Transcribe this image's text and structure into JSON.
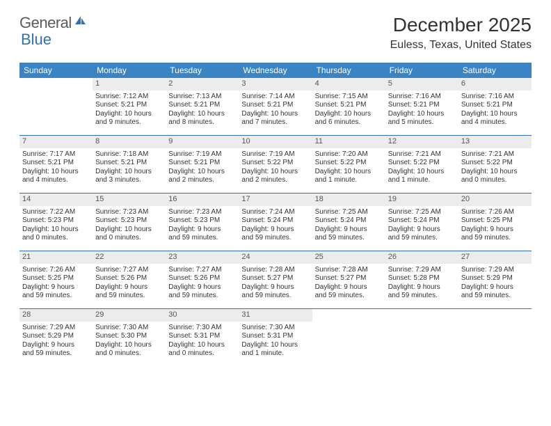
{
  "logo": {
    "word1": "General",
    "word2": "Blue"
  },
  "title": "December 2025",
  "location": "Euless, Texas, United States",
  "colors": {
    "header_bg": "#3b84c4",
    "header_text": "#ffffff",
    "daynum_bg": "#ececec",
    "daynum_text": "#555555",
    "body_text": "#333333",
    "divider": "#2f71b8",
    "logo_dark": "#5a5a5a",
    "logo_blue": "#2f71b8"
  },
  "typography": {
    "title_fontsize": 28,
    "location_fontsize": 16,
    "weekday_fontsize": 12,
    "daynum_fontsize": 11,
    "body_fontsize": 10
  },
  "weekdays": [
    "Sunday",
    "Monday",
    "Tuesday",
    "Wednesday",
    "Thursday",
    "Friday",
    "Saturday"
  ],
  "weeks": [
    [
      {
        "blank": true
      },
      {
        "n": "1",
        "sr": "Sunrise: 7:12 AM",
        "ss": "Sunset: 5:21 PM",
        "d1": "Daylight: 10 hours",
        "d2": "and 9 minutes."
      },
      {
        "n": "2",
        "sr": "Sunrise: 7:13 AM",
        "ss": "Sunset: 5:21 PM",
        "d1": "Daylight: 10 hours",
        "d2": "and 8 minutes."
      },
      {
        "n": "3",
        "sr": "Sunrise: 7:14 AM",
        "ss": "Sunset: 5:21 PM",
        "d1": "Daylight: 10 hours",
        "d2": "and 7 minutes."
      },
      {
        "n": "4",
        "sr": "Sunrise: 7:15 AM",
        "ss": "Sunset: 5:21 PM",
        "d1": "Daylight: 10 hours",
        "d2": "and 6 minutes."
      },
      {
        "n": "5",
        "sr": "Sunrise: 7:16 AM",
        "ss": "Sunset: 5:21 PM",
        "d1": "Daylight: 10 hours",
        "d2": "and 5 minutes."
      },
      {
        "n": "6",
        "sr": "Sunrise: 7:16 AM",
        "ss": "Sunset: 5:21 PM",
        "d1": "Daylight: 10 hours",
        "d2": "and 4 minutes."
      }
    ],
    [
      {
        "n": "7",
        "sr": "Sunrise: 7:17 AM",
        "ss": "Sunset: 5:21 PM",
        "d1": "Daylight: 10 hours",
        "d2": "and 4 minutes."
      },
      {
        "n": "8",
        "sr": "Sunrise: 7:18 AM",
        "ss": "Sunset: 5:21 PM",
        "d1": "Daylight: 10 hours",
        "d2": "and 3 minutes."
      },
      {
        "n": "9",
        "sr": "Sunrise: 7:19 AM",
        "ss": "Sunset: 5:21 PM",
        "d1": "Daylight: 10 hours",
        "d2": "and 2 minutes."
      },
      {
        "n": "10",
        "sr": "Sunrise: 7:19 AM",
        "ss": "Sunset: 5:22 PM",
        "d1": "Daylight: 10 hours",
        "d2": "and 2 minutes."
      },
      {
        "n": "11",
        "sr": "Sunrise: 7:20 AM",
        "ss": "Sunset: 5:22 PM",
        "d1": "Daylight: 10 hours",
        "d2": "and 1 minute."
      },
      {
        "n": "12",
        "sr": "Sunrise: 7:21 AM",
        "ss": "Sunset: 5:22 PM",
        "d1": "Daylight: 10 hours",
        "d2": "and 1 minute."
      },
      {
        "n": "13",
        "sr": "Sunrise: 7:21 AM",
        "ss": "Sunset: 5:22 PM",
        "d1": "Daylight: 10 hours",
        "d2": "and 0 minutes."
      }
    ],
    [
      {
        "n": "14",
        "sr": "Sunrise: 7:22 AM",
        "ss": "Sunset: 5:23 PM",
        "d1": "Daylight: 10 hours",
        "d2": "and 0 minutes."
      },
      {
        "n": "15",
        "sr": "Sunrise: 7:23 AM",
        "ss": "Sunset: 5:23 PM",
        "d1": "Daylight: 10 hours",
        "d2": "and 0 minutes."
      },
      {
        "n": "16",
        "sr": "Sunrise: 7:23 AM",
        "ss": "Sunset: 5:23 PM",
        "d1": "Daylight: 9 hours",
        "d2": "and 59 minutes."
      },
      {
        "n": "17",
        "sr": "Sunrise: 7:24 AM",
        "ss": "Sunset: 5:24 PM",
        "d1": "Daylight: 9 hours",
        "d2": "and 59 minutes."
      },
      {
        "n": "18",
        "sr": "Sunrise: 7:25 AM",
        "ss": "Sunset: 5:24 PM",
        "d1": "Daylight: 9 hours",
        "d2": "and 59 minutes."
      },
      {
        "n": "19",
        "sr": "Sunrise: 7:25 AM",
        "ss": "Sunset: 5:24 PM",
        "d1": "Daylight: 9 hours",
        "d2": "and 59 minutes."
      },
      {
        "n": "20",
        "sr": "Sunrise: 7:26 AM",
        "ss": "Sunset: 5:25 PM",
        "d1": "Daylight: 9 hours",
        "d2": "and 59 minutes."
      }
    ],
    [
      {
        "n": "21",
        "sr": "Sunrise: 7:26 AM",
        "ss": "Sunset: 5:25 PM",
        "d1": "Daylight: 9 hours",
        "d2": "and 59 minutes."
      },
      {
        "n": "22",
        "sr": "Sunrise: 7:27 AM",
        "ss": "Sunset: 5:26 PM",
        "d1": "Daylight: 9 hours",
        "d2": "and 59 minutes."
      },
      {
        "n": "23",
        "sr": "Sunrise: 7:27 AM",
        "ss": "Sunset: 5:26 PM",
        "d1": "Daylight: 9 hours",
        "d2": "and 59 minutes."
      },
      {
        "n": "24",
        "sr": "Sunrise: 7:28 AM",
        "ss": "Sunset: 5:27 PM",
        "d1": "Daylight: 9 hours",
        "d2": "and 59 minutes."
      },
      {
        "n": "25",
        "sr": "Sunrise: 7:28 AM",
        "ss": "Sunset: 5:27 PM",
        "d1": "Daylight: 9 hours",
        "d2": "and 59 minutes."
      },
      {
        "n": "26",
        "sr": "Sunrise: 7:29 AM",
        "ss": "Sunset: 5:28 PM",
        "d1": "Daylight: 9 hours",
        "d2": "and 59 minutes."
      },
      {
        "n": "27",
        "sr": "Sunrise: 7:29 AM",
        "ss": "Sunset: 5:29 PM",
        "d1": "Daylight: 9 hours",
        "d2": "and 59 minutes."
      }
    ],
    [
      {
        "n": "28",
        "sr": "Sunrise: 7:29 AM",
        "ss": "Sunset: 5:29 PM",
        "d1": "Daylight: 9 hours",
        "d2": "and 59 minutes."
      },
      {
        "n": "29",
        "sr": "Sunrise: 7:30 AM",
        "ss": "Sunset: 5:30 PM",
        "d1": "Daylight: 10 hours",
        "d2": "and 0 minutes."
      },
      {
        "n": "30",
        "sr": "Sunrise: 7:30 AM",
        "ss": "Sunset: 5:31 PM",
        "d1": "Daylight: 10 hours",
        "d2": "and 0 minutes."
      },
      {
        "n": "31",
        "sr": "Sunrise: 7:30 AM",
        "ss": "Sunset: 5:31 PM",
        "d1": "Daylight: 10 hours",
        "d2": "and 1 minute."
      },
      {
        "blank": true
      },
      {
        "blank": true
      },
      {
        "blank": true
      }
    ]
  ]
}
